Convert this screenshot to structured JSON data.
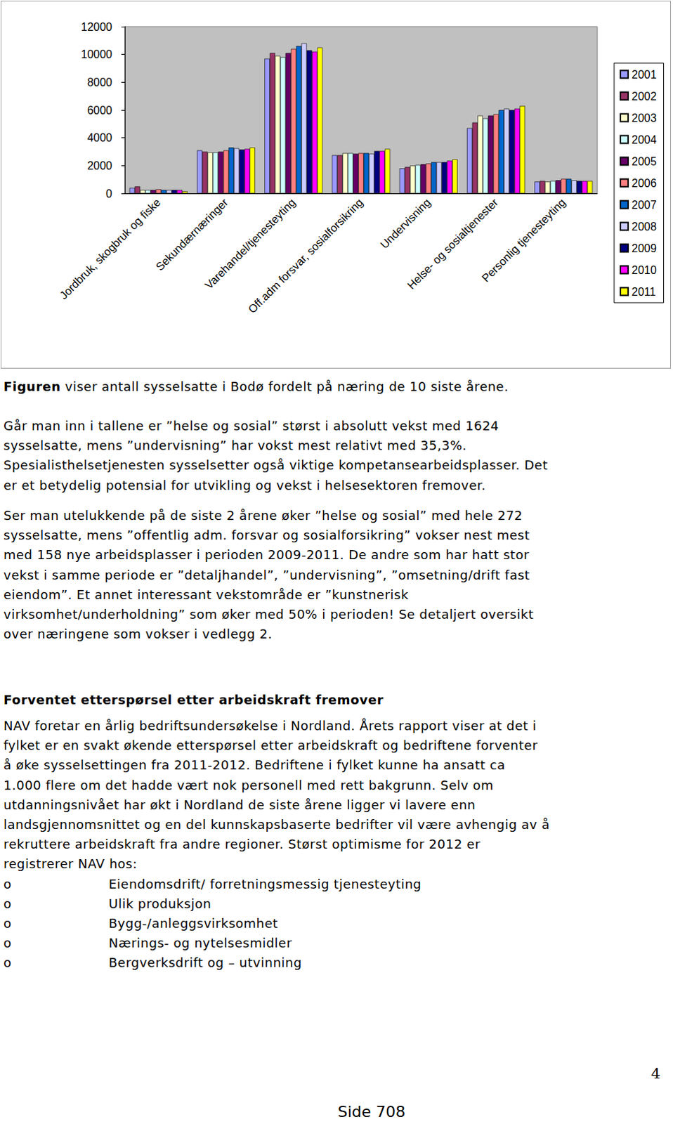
{
  "chart_data": {
    "type": "bar",
    "categories": [
      "Jordbruk, skogbruk og fiske",
      "Sekundærnæringer",
      "Varehandel/tjenesteyting",
      "Off.adm forsvar, sosialforsikring",
      "Undervisning",
      "Helse- og sosialtjenester",
      "Personlig tjenesteyting"
    ],
    "series": [
      {
        "name": "2001",
        "color": "#9999ff",
        "values": [
          400,
          3100,
          9700,
          2750,
          1800,
          4700,
          850
        ]
      },
      {
        "name": "2002",
        "color": "#993366",
        "values": [
          500,
          3000,
          10100,
          2750,
          1900,
          5100,
          900
        ]
      },
      {
        "name": "2003",
        "color": "#ffffcc",
        "values": [
          250,
          2950,
          9900,
          2900,
          2000,
          5600,
          850
        ]
      },
      {
        "name": "2004",
        "color": "#ccffff",
        "values": [
          250,
          2950,
          9800,
          2900,
          2050,
          5400,
          900
        ]
      },
      {
        "name": "2005",
        "color": "#660066",
        "values": [
          250,
          3000,
          10100,
          2850,
          2100,
          5600,
          950
        ]
      },
      {
        "name": "2006",
        "color": "#ff8080",
        "values": [
          300,
          3100,
          10400,
          2900,
          2150,
          5700,
          1050
        ]
      },
      {
        "name": "2007",
        "color": "#0066cc",
        "values": [
          250,
          3300,
          10600,
          2900,
          2250,
          6000,
          1050
        ]
      },
      {
        "name": "2008",
        "color": "#ccccff",
        "values": [
          250,
          3250,
          10800,
          2850,
          2250,
          6100,
          950
        ]
      },
      {
        "name": "2009",
        "color": "#000080",
        "values": [
          250,
          3150,
          10300,
          3050,
          2250,
          6000,
          900
        ]
      },
      {
        "name": "2010",
        "color": "#ff00ff",
        "values": [
          250,
          3200,
          10200,
          3050,
          2350,
          6100,
          900
        ]
      },
      {
        "name": "2011",
        "color": "#ffff00",
        "values": [
          150,
          3300,
          10500,
          3200,
          2450,
          6300,
          900
        ]
      }
    ],
    "ylim": [
      0,
      12000
    ],
    "yticks": [
      0,
      2000,
      4000,
      6000,
      8000,
      10000,
      12000
    ],
    "grid": false,
    "legend": "right"
  },
  "document": {
    "caption": {
      "label": "Figuren",
      "text": "viser antall sysselsatte i Bodø fordelt på næring de 10 siste årene."
    },
    "paragraphs": [
      [
        "Går man inn i tallene er ”helse og sosial” størst i absolutt vekst med 1624",
        "sysselsatte, mens ”undervisning” har vokst mest relativt med 35,3%.",
        "Spesialisthelsetjenesten sysselsetter også viktige kompetansearbeidsplasser. Det",
        "er et betydelig potensial for utvikling og vekst i helsesektoren fremover."
      ],
      [
        "Ser man utelukkende på de siste 2 årene øker ”helse og sosial” med hele 272",
        "sysselsatte, mens ”offentlig adm. forsvar og sosialforsikring” vokser nest mest",
        "med 158 nye arbeidsplasser i perioden 2009-2011. De andre som har hatt stor",
        "vekst i samme periode er ”detaljhandel”, ”undervisning”, ”omsetning/drift fast",
        "eiendom”. Et annet interessant vekstområde er ”kunstnerisk",
        "virksomhet/underholdning” som øker med 50% i perioden! Se detaljert oversikt",
        "over næringene som vokser i vedlegg 2."
      ]
    ],
    "heading": "Forventet etterspørsel etter arbeidskraft fremover",
    "section_text": [
      "NAV foretar en årlig bedriftsundersøkelse i Nordland. Årets rapport viser at det i",
      "fylket er en svakt økende etterspørsel etter arbeidskraft og bedriftene forventer",
      "å øke sysselsettingen fra 2011-2012. Bedriftene i fylket kunne ha ansatt ca",
      "1.000 flere om det hadde vært nok personell med rett bakgrunn. Selv om",
      "utdanningsnivået har økt i Nordland de siste årene ligger vi lavere enn",
      "landsgjennomsnittet og en del kunnskapsbaserte bedrifter vil være avhengig av å",
      "rekruttere arbeidskraft fra andre regioner. Størst optimisme for 2012 er",
      "registrerer NAV hos:"
    ],
    "bullet_marker": "o",
    "bullets": [
      "Eiendomsdrift/ forretningsmessig tjenesteyting",
      "Ulik produksjon",
      "Bygg-/anleggsvirksomhet",
      "Nærings- og nytelsesmidler",
      "Bergverksdrift og – utvinning"
    ],
    "page_number": "4",
    "footer": "Side 708"
  }
}
